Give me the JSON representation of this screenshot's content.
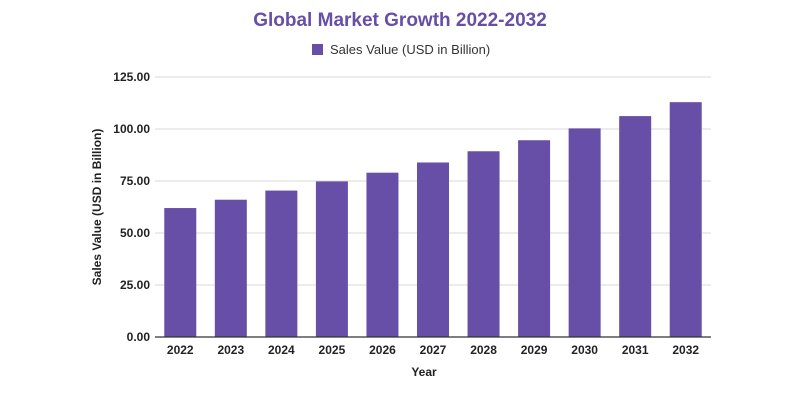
{
  "chart_data": {
    "type": "bar",
    "title": "Global Market Growth 2022-2032",
    "xlabel": "Year",
    "ylabel": "Sales Value (USD in Billion)",
    "categories": [
      "2022",
      "2023",
      "2024",
      "2025",
      "2026",
      "2027",
      "2028",
      "2029",
      "2030",
      "2031",
      "2032"
    ],
    "series": [
      {
        "name": "Sales Value (USD in Billion)",
        "values": [
          62.0,
          66.0,
          70.4,
          74.8,
          79.0,
          83.9,
          89.3,
          94.6,
          100.3,
          106.2,
          112.9
        ]
      }
    ],
    "ylim": [
      0,
      125
    ],
    "yticks": [
      "0.00",
      "25.00",
      "50.00",
      "75.00",
      "100.00",
      "125.00"
    ],
    "grid": true,
    "legend_position": "top-center",
    "colors": {
      "bar": "#674EA7",
      "title": "#674EA7",
      "grid": "#d9d9d9",
      "axis": "#333333"
    }
  }
}
